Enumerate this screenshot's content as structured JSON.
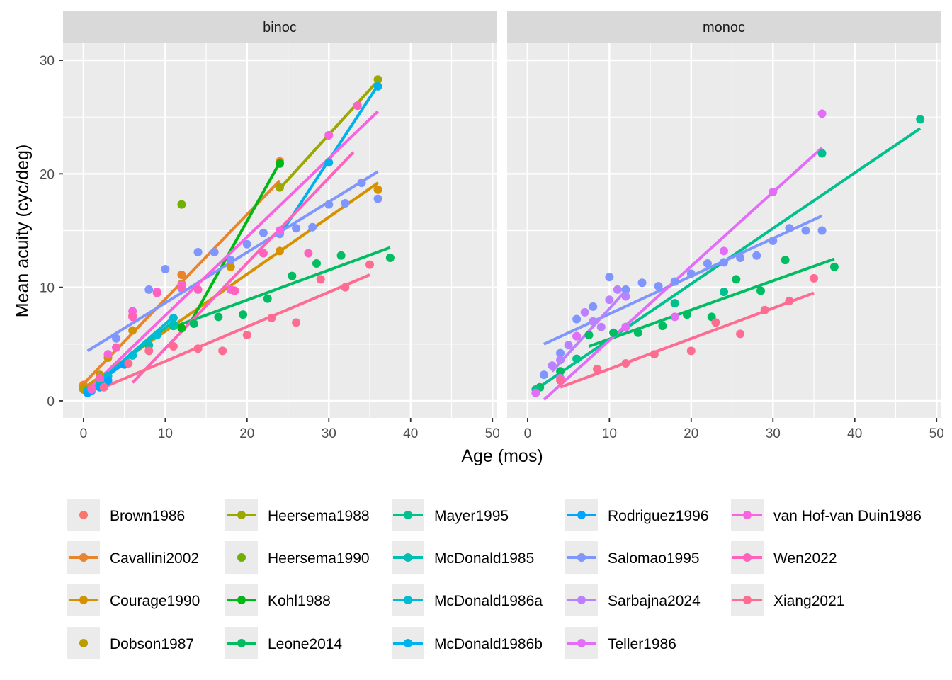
{
  "chart_data": {
    "type": "scatter",
    "xlabel": "Age (mos)",
    "ylabel": "Mean acuity (cyc/deg)",
    "xlim": [
      -2.5,
      50.5
    ],
    "ylim": [
      -1.5,
      31.5
    ],
    "x_ticks": [
      0,
      10,
      20,
      30,
      40,
      50
    ],
    "y_ticks": [
      0,
      10,
      20,
      30
    ],
    "grid": true,
    "legend_position": "bottom",
    "facets": [
      "binoc",
      "monoc"
    ],
    "series": [
      {
        "name": "Brown1986",
        "color": "#F8766D",
        "kind": "point",
        "points": {
          "binoc": [
            [
              0.9,
              0.9
            ]
          ],
          "monoc": []
        },
        "fits": {
          "binoc": [],
          "monoc": []
        }
      },
      {
        "name": "Cavallini2002",
        "color": "#E9842C",
        "kind": "point+line",
        "points": {
          "binoc": [
            [
              0,
              1.4
            ],
            [
              6,
              7.5
            ],
            [
              12,
              11.1
            ],
            [
              24,
              21.1
            ]
          ],
          "monoc": []
        },
        "fits": {
          "binoc": [
            [
              0,
              1.5,
              24,
              19.4
            ]
          ],
          "monoc": []
        }
      },
      {
        "name": "Courage1990",
        "color": "#D69100",
        "kind": "point+line",
        "points": {
          "binoc": [
            [
              0,
              1.2
            ],
            [
              3,
              3.8
            ],
            [
              6,
              6.2
            ],
            [
              12,
              10.3
            ],
            [
              18,
              11.8
            ],
            [
              24,
              13.2
            ],
            [
              36,
              18.6
            ]
          ],
          "monoc": []
        },
        "fits": {
          "binoc": [
            [
              0,
              1.1,
              36,
              19.2
            ]
          ],
          "monoc": []
        }
      },
      {
        "name": "Dobson1987",
        "color": "#BC9D00",
        "kind": "point",
        "points": {
          "binoc": [
            [
              0,
              1.0
            ],
            [
              2,
              2.3
            ]
          ],
          "monoc": []
        },
        "fits": {
          "binoc": [],
          "monoc": []
        }
      },
      {
        "name": "Heersema1988",
        "color": "#9CA700",
        "kind": "point+line",
        "points": {
          "binoc": [
            [
              24,
              18.8
            ],
            [
              30,
              23.4
            ],
            [
              36,
              28.3
            ]
          ],
          "monoc": []
        },
        "fits": {
          "binoc": [
            [
              24,
              18.7,
              36,
              28.2
            ]
          ],
          "monoc": []
        }
      },
      {
        "name": "Heersema1990",
        "color": "#6FB000",
        "kind": "point",
        "points": {
          "binoc": [
            [
              12,
              17.3
            ]
          ],
          "monoc": []
        },
        "fits": {
          "binoc": [],
          "monoc": []
        }
      },
      {
        "name": "Kohl1988",
        "color": "#00B813",
        "kind": "point+line",
        "points": {
          "binoc": [
            [
              12,
              6.4
            ],
            [
              24,
              20.9
            ]
          ],
          "monoc": []
        },
        "fits": {
          "binoc": [
            [
              13,
              6.8,
              24,
              21.0
            ]
          ],
          "monoc": []
        }
      },
      {
        "name": "Leone2014",
        "color": "#00BD61",
        "kind": "point+line",
        "points": {
          "binoc": [
            [
              11,
              6.6
            ],
            [
              13.5,
              6.8
            ],
            [
              16.5,
              7.4
            ],
            [
              19.5,
              7.6
            ],
            [
              22.5,
              9.0
            ],
            [
              25.5,
              11.0
            ],
            [
              28.5,
              12.1
            ],
            [
              31.5,
              12.8
            ],
            [
              37.5,
              12.6
            ]
          ],
          "monoc": [
            [
              1.5,
              1.2
            ],
            [
              4,
              2.6
            ],
            [
              7.5,
              5.8
            ],
            [
              10.5,
              6.0
            ],
            [
              13.5,
              6.0
            ],
            [
              16.5,
              6.6
            ],
            [
              19.5,
              7.6
            ],
            [
              22.5,
              7.4
            ],
            [
              25.5,
              10.7
            ],
            [
              28.5,
              9.7
            ],
            [
              31.5,
              12.4
            ],
            [
              37.5,
              11.8
            ]
          ]
        },
        "fits": {
          "binoc": [
            [
              11,
              6.5,
              37.5,
              13.5
            ]
          ],
          "monoc": [
            [
              7.5,
              4.8,
              37.5,
              12.5
            ]
          ]
        }
      },
      {
        "name": "Mayer1995",
        "color": "#00C08E",
        "kind": "point+line",
        "points": {
          "binoc": [
            [
              0.5,
              0.9
            ],
            [
              1,
              1.1
            ]
          ],
          "monoc": [
            [
              1,
              1.0
            ],
            [
              6,
              3.7
            ],
            [
              12,
              6.5
            ],
            [
              18,
              8.6
            ],
            [
              24,
              9.6
            ],
            [
              36,
              21.8
            ],
            [
              48,
              24.8
            ]
          ]
        },
        "fits": {
          "binoc": [
            [
              0,
              1.0,
              1,
              1.2
            ]
          ],
          "monoc": [
            [
              1,
              1.0,
              48,
              24.0
            ]
          ]
        }
      },
      {
        "name": "McDonald1985",
        "color": "#00BFB2",
        "kind": "point+line",
        "points": {
          "binoc": [
            [
              0.5,
              0.8
            ],
            [
              2,
              1.6
            ],
            [
              5,
              3.2
            ],
            [
              8,
              4.9
            ],
            [
              11,
              6.7
            ]
          ],
          "monoc": []
        },
        "fits": {
          "binoc": [
            [
              0.5,
              0.9,
              11,
              7.0
            ]
          ],
          "monoc": []
        }
      },
      {
        "name": "McDonald1986a",
        "color": "#00BBD2",
        "kind": "point+line",
        "points": {
          "binoc": [
            [
              0.5,
              0.8
            ],
            [
              1,
              1.0
            ],
            [
              3,
              2.2
            ],
            [
              6,
              4.0
            ],
            [
              9,
              5.8
            ],
            [
              11,
              7.3
            ]
          ],
          "monoc": []
        },
        "fits": {
          "binoc": [
            [
              0.5,
              0.8,
              11,
              7.4
            ]
          ],
          "monoc": []
        }
      },
      {
        "name": "McDonald1986b",
        "color": "#00B2EC",
        "kind": "point+line",
        "points": {
          "binoc": [
            [
              24,
              14.8
            ],
            [
              30,
              21.0
            ],
            [
              36,
              27.7
            ]
          ],
          "monoc": []
        },
        "fits": {
          "binoc": [
            [
              24,
              14.6,
              36,
              27.8
            ]
          ],
          "monoc": []
        }
      },
      {
        "name": "Rodriguez1996",
        "color": "#00A5FF",
        "kind": "point+line",
        "points": {
          "binoc": [
            [
              0.5,
              0.7
            ],
            [
              1,
              0.9
            ],
            [
              2,
              1.2
            ],
            [
              3,
              1.8
            ],
            [
              5,
              3.2
            ]
          ],
          "monoc": []
        },
        "fits": {
          "binoc": [
            [
              0,
              0.7,
              5,
              3.3
            ]
          ],
          "monoc": []
        }
      },
      {
        "name": "Salomao1995",
        "color": "#7F96FF",
        "kind": "point+line",
        "points": {
          "binoc": [
            [
              4,
              5.5
            ],
            [
              8,
              9.8
            ],
            [
              10,
              11.6
            ],
            [
              12,
              9.9
            ],
            [
              14,
              13.1
            ],
            [
              16,
              13.1
            ],
            [
              18,
              12.4
            ],
            [
              20,
              13.8
            ],
            [
              22,
              14.8
            ],
            [
              24,
              14.7
            ],
            [
              26,
              15.2
            ],
            [
              28,
              15.3
            ],
            [
              30,
              17.3
            ],
            [
              32,
              17.4
            ],
            [
              34,
              19.2
            ],
            [
              36,
              17.8
            ]
          ],
          "monoc": [
            [
              2,
              2.3
            ],
            [
              4,
              4.2
            ],
            [
              6,
              7.2
            ],
            [
              8,
              8.3
            ],
            [
              10,
              10.9
            ],
            [
              12,
              9.8
            ],
            [
              14,
              10.4
            ],
            [
              16,
              10.1
            ],
            [
              18,
              10.5
            ],
            [
              20,
              11.2
            ],
            [
              22,
              12.1
            ],
            [
              24,
              12.2
            ],
            [
              26,
              12.6
            ],
            [
              28,
              12.8
            ],
            [
              30,
              14.1
            ],
            [
              32,
              15.2
            ],
            [
              34,
              15.0
            ],
            [
              36,
              15.0
            ]
          ]
        },
        "fits": {
          "binoc": [
            [
              0.5,
              4.4,
              36,
              20.2
            ]
          ],
          "monoc": [
            [
              2,
              5.0,
              36,
              16.3
            ]
          ]
        }
      },
      {
        "name": "Sarbajna2024",
        "color": "#BC81FF",
        "kind": "point+line",
        "points": {
          "binoc": [],
          "monoc": [
            [
              3,
              3.1
            ],
            [
              4,
              3.6
            ],
            [
              5,
              4.9
            ],
            [
              6,
              5.7
            ],
            [
              7,
              7.8
            ],
            [
              8,
              7.0
            ],
            [
              9,
              6.5
            ],
            [
              10,
              8.9
            ],
            [
              11,
              9.8
            ],
            [
              12,
              9.2
            ]
          ]
        },
        "fits": {
          "binoc": [],
          "monoc": [
            [
              3,
              2.6,
              12,
              9.7
            ]
          ]
        }
      },
      {
        "name": "Teller1986",
        "color": "#E26EF7",
        "kind": "point+line",
        "points": {
          "binoc": [],
          "monoc": [
            [
              1,
              0.7
            ],
            [
              4,
              2.0
            ],
            [
              6,
              5.7
            ],
            [
              12,
              6.5
            ],
            [
              18,
              7.4
            ],
            [
              24,
              13.2
            ],
            [
              30,
              18.4
            ],
            [
              36,
              25.3
            ]
          ]
        },
        "fits": {
          "binoc": [],
          "monoc": [
            [
              2,
              0.1,
              36,
              22.3
            ]
          ]
        }
      },
      {
        "name": "van Hof-van Duin1986",
        "color": "#F863DF",
        "kind": "point+line",
        "points": {
          "binoc": [
            [
              1,
              1.0
            ],
            [
              3,
              4.1
            ],
            [
              6,
              7.9
            ],
            [
              9,
              9.6
            ],
            [
              12,
              10.2
            ],
            [
              18,
              9.8
            ],
            [
              24,
              15.0
            ],
            [
              30,
              23.4
            ],
            [
              33.5,
              26.0
            ]
          ],
          "monoc": []
        },
        "fits": {
          "binoc": [
            [
              0,
              0.6,
              36,
              25.5
            ]
          ],
          "monoc": []
        }
      },
      {
        "name": "Wen2022",
        "color": "#FF62BC",
        "kind": "point+line",
        "points": {
          "binoc": [
            [
              1,
              1.1
            ],
            [
              2,
              2.0
            ],
            [
              4,
              4.7
            ],
            [
              6,
              7.4
            ],
            [
              9,
              9.5
            ],
            [
              12,
              10.0
            ],
            [
              14,
              9.8
            ],
            [
              18.5,
              9.7
            ],
            [
              22,
              13.0
            ],
            [
              27.5,
              13.0
            ],
            [
              33.5,
              26.0
            ]
          ],
          "monoc": []
        },
        "fits": {
          "binoc": [
            [
              6,
              1.6,
              33,
              21.9
            ]
          ],
          "monoc": []
        }
      },
      {
        "name": "Xiang2021",
        "color": "#FF6C91",
        "kind": "point+line",
        "points": {
          "binoc": [
            [
              2.5,
              1.2
            ],
            [
              5.5,
              3.3
            ],
            [
              8,
              4.4
            ],
            [
              11,
              4.8
            ],
            [
              14,
              4.6
            ],
            [
              17,
              4.4
            ],
            [
              20,
              5.8
            ],
            [
              23,
              7.3
            ],
            [
              26,
              6.9
            ],
            [
              29,
              10.7
            ],
            [
              32,
              10.0
            ],
            [
              35,
              12.0
            ]
          ],
          "monoc": [
            [
              4,
              1.8
            ],
            [
              8.5,
              2.8
            ],
            [
              12,
              3.3
            ],
            [
              15.5,
              4.1
            ],
            [
              20,
              4.4
            ],
            [
              23,
              6.9
            ],
            [
              26,
              5.9
            ],
            [
              29,
              8.0
            ],
            [
              32,
              8.8
            ],
            [
              35,
              10.8
            ]
          ]
        },
        "fits": {
          "binoc": [
            [
              2.5,
              1.2,
              35,
              11.1
            ]
          ],
          "monoc": [
            [
              4,
              1.2,
              35,
              9.5
            ]
          ]
        }
      }
    ]
  }
}
